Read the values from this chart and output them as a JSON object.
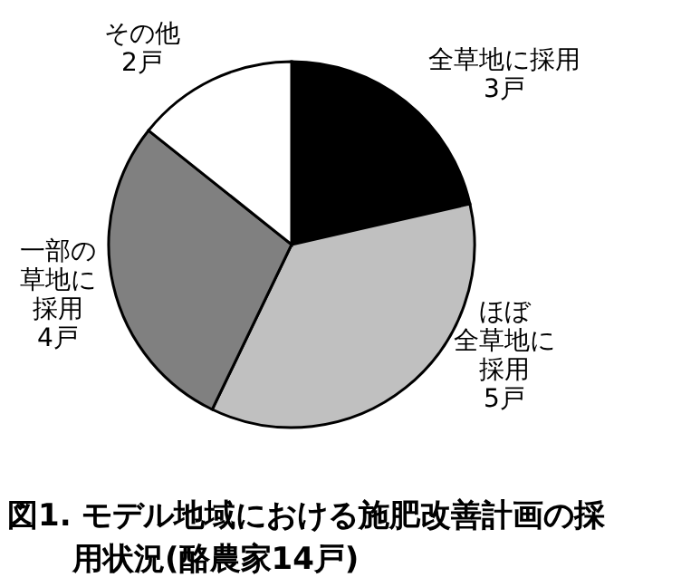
{
  "chart_data": {
    "type": "pie",
    "title": "図1. モデル地域における施肥改善計画の採用状況(酪農家14戸)",
    "categories": [
      "全草地に採用",
      "ほぼ全草地に採用",
      "一部の草地に採用",
      "その他"
    ],
    "values": [
      3,
      5,
      4,
      2
    ],
    "value_labels": [
      "3戸",
      "5戸",
      "4戸",
      "2戸"
    ],
    "colors": [
      "#000000",
      "#c0c0c0",
      "#808080",
      "#ffffff"
    ]
  }
}
